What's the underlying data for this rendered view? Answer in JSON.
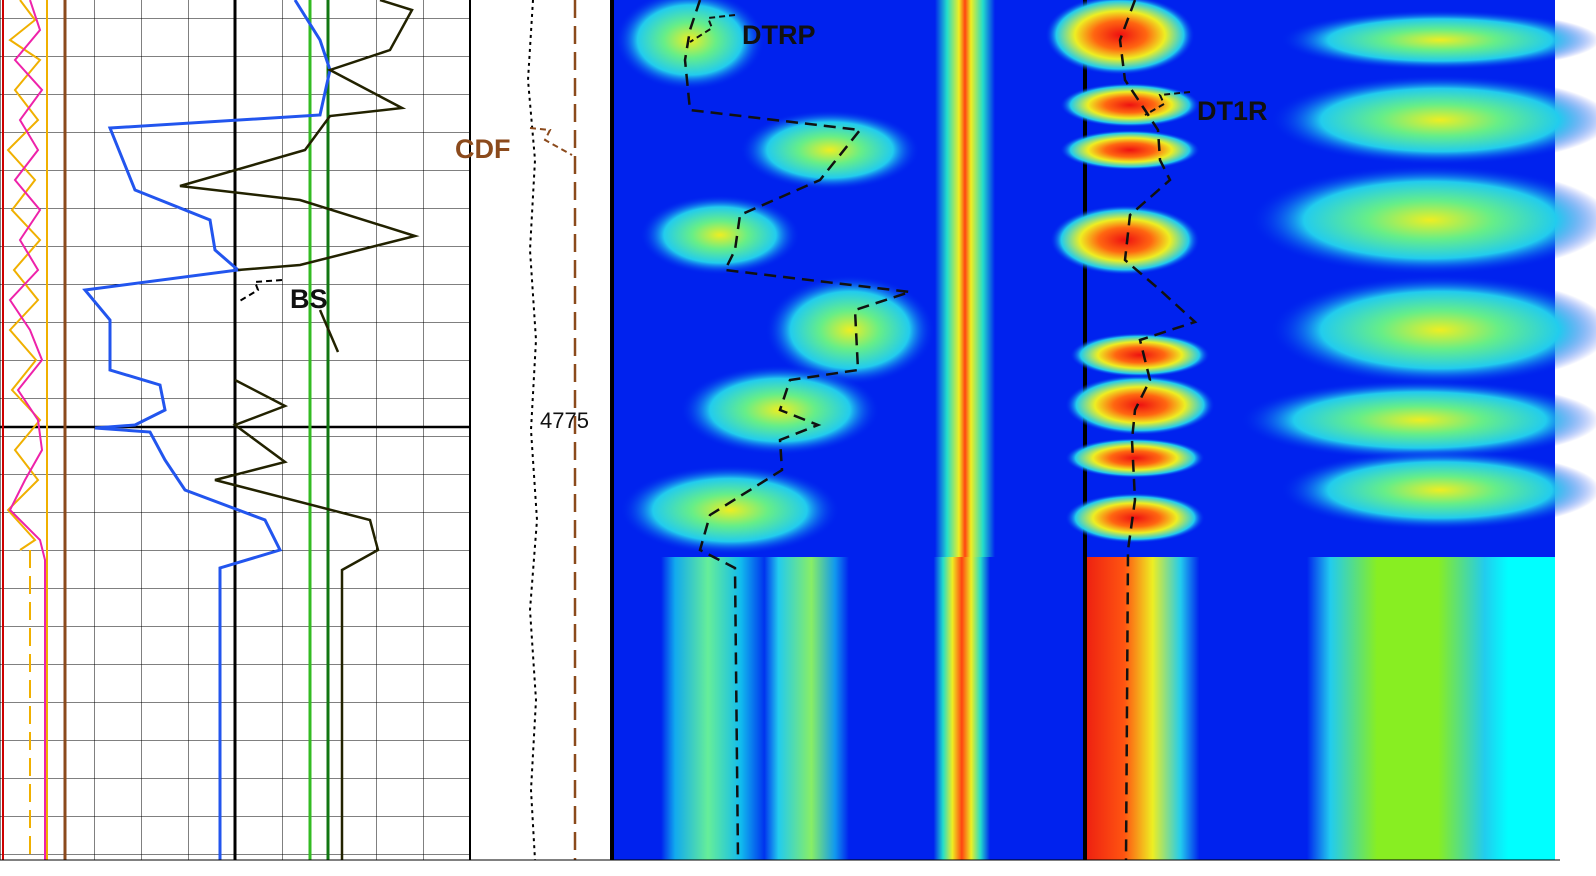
{
  "curve_labels": {
    "dtrp": "DTRP",
    "dt1r": "DT1R",
    "bs": "BS",
    "cdf": "CDF"
  },
  "depth_label": "4775"
}
